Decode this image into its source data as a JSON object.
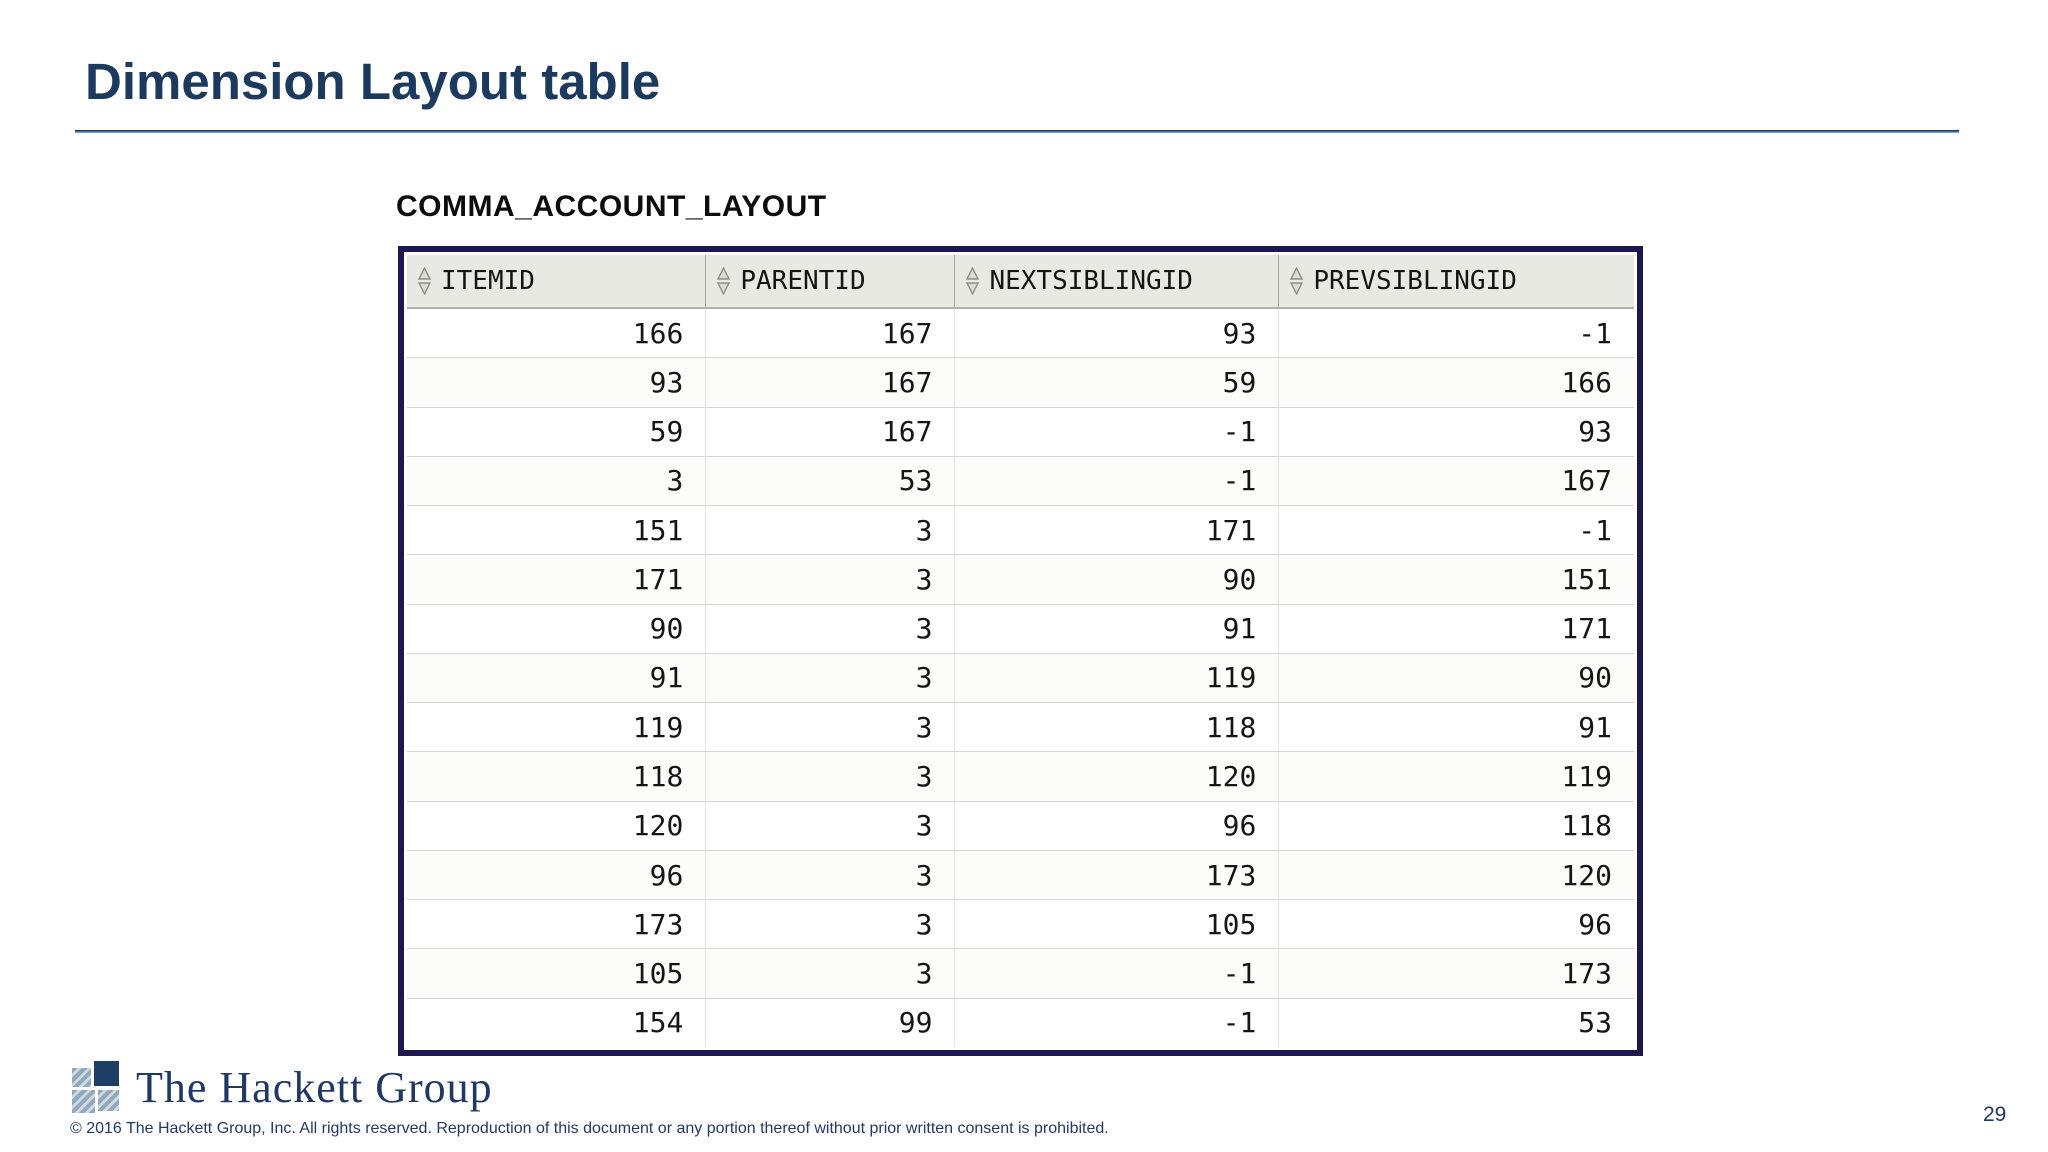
{
  "slide": {
    "title": "Dimension Layout table",
    "page_number": "29",
    "footer": {
      "logo_text": "The Hackett Group",
      "copyright": "© 2016 The Hackett Group, Inc.  All rights reserved. Reproduction of this document or any portion thereof without prior written consent is prohibited."
    }
  },
  "table": {
    "caption": "COMMA_ACCOUNT_LAYOUT",
    "columns": [
      "ITEMID",
      "PARENTID",
      "NEXTSIBLINGID",
      "PREVSIBLINGID"
    ],
    "sort_icon": "sort-updown-icon",
    "rows": [
      [
        "166",
        "167",
        "93",
        "-1"
      ],
      [
        "93",
        "167",
        "59",
        "166"
      ],
      [
        "59",
        "167",
        "-1",
        "93"
      ],
      [
        "3",
        "53",
        "-1",
        "167"
      ],
      [
        "151",
        "3",
        "171",
        "-1"
      ],
      [
        "171",
        "3",
        "90",
        "151"
      ],
      [
        "90",
        "3",
        "91",
        "171"
      ],
      [
        "91",
        "3",
        "119",
        "90"
      ],
      [
        "119",
        "3",
        "118",
        "91"
      ],
      [
        "118",
        "3",
        "120",
        "119"
      ],
      [
        "120",
        "3",
        "96",
        "118"
      ],
      [
        "96",
        "3",
        "173",
        "120"
      ],
      [
        "173",
        "3",
        "105",
        "96"
      ],
      [
        "105",
        "3",
        "-1",
        "173"
      ],
      [
        "154",
        "99",
        "-1",
        "53"
      ]
    ]
  },
  "colors": {
    "title": "#1c3a5e",
    "rule_dark": "#1c3a5e",
    "rule_light": "#6ea4d8",
    "grid_border": "#1e1850",
    "header_bg": "#e9e9e3",
    "logo_navy": "#1d3f66",
    "logo_hatch": "#8fa8bd"
  }
}
